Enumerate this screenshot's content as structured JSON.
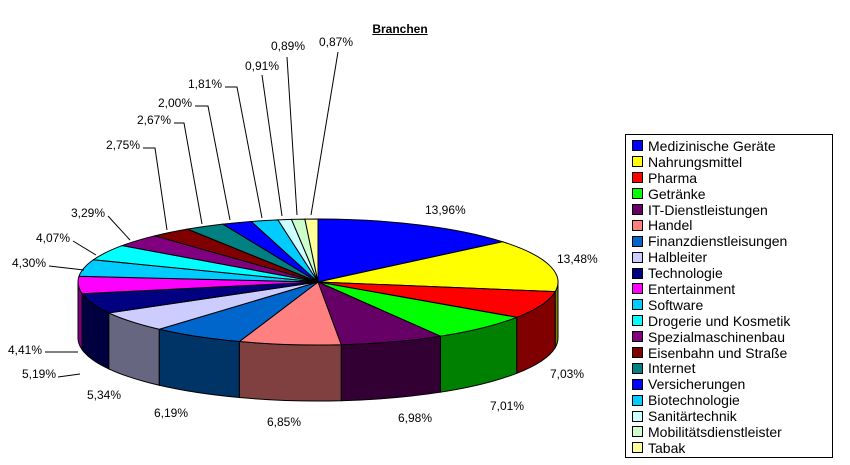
{
  "chart_data": {
    "type": "pie",
    "title": "Branchen",
    "legend_position": "right",
    "slices": [
      {
        "label": "Medizinische Geräte",
        "value": 13.96,
        "text": "13,96%",
        "color": "#0000FF"
      },
      {
        "label": "Nahrungsmittel",
        "value": 13.48,
        "text": "13,48%",
        "color": "#FFFF00"
      },
      {
        "label": "Pharma",
        "value": 7.03,
        "text": "7,03%",
        "color": "#FF0000"
      },
      {
        "label": "Getränke",
        "value": 7.01,
        "text": "7,01%",
        "color": "#00FF00"
      },
      {
        "label": "IT-Dienstleistungen",
        "value": 6.98,
        "text": "6,98%",
        "color": "#660066"
      },
      {
        "label": "Handel",
        "value": 6.85,
        "text": "6,85%",
        "color": "#FF8080"
      },
      {
        "label": "Finanzdienstleisungen",
        "value": 6.19,
        "text": "6,19%",
        "color": "#0066CC"
      },
      {
        "label": "Halbleiter",
        "value": 5.34,
        "text": "5,34%",
        "color": "#CCCCFF"
      },
      {
        "label": "Technologie",
        "value": 5.19,
        "text": "5,19%",
        "color": "#000080"
      },
      {
        "label": "Entertainment",
        "value": 4.41,
        "text": "4,41%",
        "color": "#FF00FF"
      },
      {
        "label": "Software",
        "value": 4.3,
        "text": "4,30%",
        "color": "#00CCFF"
      },
      {
        "label": "Drogerie und Kosmetik",
        "value": 4.07,
        "text": "4,07%",
        "color": "#00FFFF"
      },
      {
        "label": "Spezialmaschinenbau",
        "value": 3.29,
        "text": "3,29%",
        "color": "#800080"
      },
      {
        "label": "Eisenbahn und Straße",
        "value": 2.75,
        "text": "2,75%",
        "color": "#800000"
      },
      {
        "label": "Internet",
        "value": 2.67,
        "text": "2,67%",
        "color": "#008080"
      },
      {
        "label": "Versicherungen",
        "value": 2.0,
        "text": "2,00%",
        "color": "#0000FF"
      },
      {
        "label": "Biotechnologie",
        "value": 1.81,
        "text": "1,81%",
        "color": "#00CCFF"
      },
      {
        "label": "Sanitärtechnik",
        "value": 0.91,
        "text": "0,91%",
        "color": "#CCFFFF"
      },
      {
        "label": "Mobilitätsdienstleister",
        "value": 0.89,
        "text": "0,89%",
        "color": "#CCFFCC"
      },
      {
        "label": "Tabak",
        "value": 0.87,
        "text": "0,87%",
        "color": "#FFFF99"
      }
    ]
  }
}
